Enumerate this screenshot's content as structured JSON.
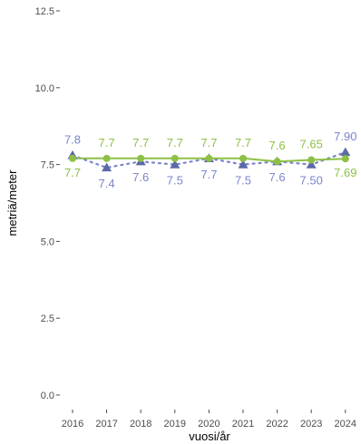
{
  "chart_data": {
    "type": "line",
    "title": "",
    "xlabel": "vuosi/år",
    "ylabel": "metriä/meter",
    "x": [
      "2016",
      "2017",
      "2018",
      "2019",
      "2020",
      "2021",
      "2022",
      "2023",
      "2024"
    ],
    "ylim": [
      0,
      12.5
    ],
    "yticks": [
      "0.0",
      "2.5",
      "5.0",
      "7.5",
      "10.0",
      "12.5"
    ],
    "grid": false,
    "legend": "none",
    "series": [
      {
        "marker": "triangle",
        "line_style": "dotted",
        "color": "#7b85cc",
        "marker_color": "#5c6aa8",
        "values": [
          7.8,
          7.4,
          7.6,
          7.5,
          7.7,
          7.5,
          7.6,
          7.5,
          7.9
        ],
        "labels": [
          "7.8",
          "7.4",
          "7.6",
          "7.5",
          "7.7",
          "7.5",
          "7.6",
          "7.50",
          "7.90"
        ]
      },
      {
        "marker": "circle",
        "line_style": "solid",
        "color": "#8dc045",
        "marker_color": "#8dc045",
        "values": [
          7.7,
          7.7,
          7.7,
          7.7,
          7.7,
          7.7,
          7.6,
          7.65,
          7.69
        ],
        "labels": [
          "7.7",
          "7.7",
          "7.7",
          "7.7",
          "7.7",
          "7.7",
          "7.6",
          "7.65",
          "7.69"
        ]
      }
    ]
  }
}
